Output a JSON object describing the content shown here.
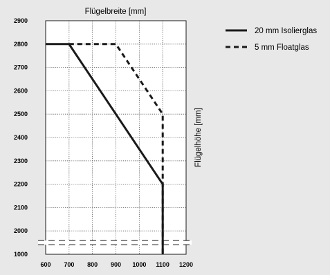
{
  "chart_data": {
    "type": "line",
    "title": "",
    "xlabel": "Flügelbreite [mm]",
    "ylabel": "Flügelhöhe [mm]",
    "xlim": [
      600,
      1200
    ],
    "x_ticks": [
      600,
      700,
      800,
      900,
      1000,
      1100,
      1200
    ],
    "ylim": [
      1000,
      2900
    ],
    "y_ticks": [
      1000,
      2000,
      2100,
      2200,
      2300,
      2400,
      2500,
      2600,
      2700,
      2800,
      2900
    ],
    "axis_break": "between 1000 and 2000",
    "grid": true,
    "legend_position": "top-right",
    "series": [
      {
        "name": "20 mm Isolierglas",
        "style": "solid",
        "color": "#1a1a1a",
        "points": [
          [
            600,
            2800
          ],
          [
            700,
            2800
          ],
          [
            900,
            2500
          ],
          [
            1100,
            2200
          ],
          [
            1100,
            1000
          ]
        ]
      },
      {
        "name": "5 mm Floatglas",
        "style": "dashed",
        "color": "#1a1a1a",
        "points": [
          [
            700,
            2800
          ],
          [
            900,
            2800
          ],
          [
            1100,
            2500
          ],
          [
            1100,
            1000
          ]
        ]
      }
    ]
  }
}
